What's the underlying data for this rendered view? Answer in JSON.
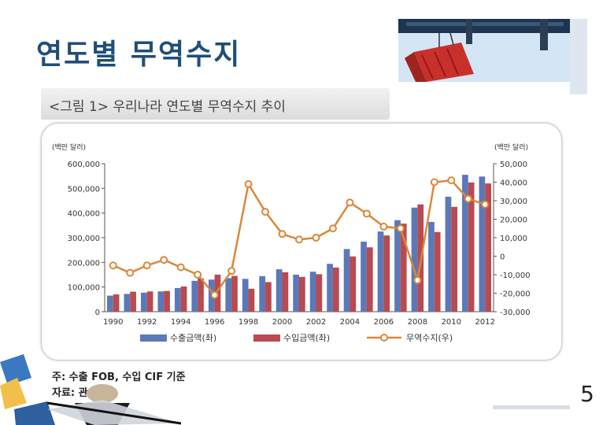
{
  "slide": {
    "title": "연도별 무역수지",
    "figure_heading": "<그림 1> 우리나라 연도별 무역수지 추이",
    "note": "주: 수출 FOB, 수입 CIF 기준",
    "source": "자료: 관세청",
    "page_number": "5"
  },
  "chart_data": {
    "type": "bar",
    "title": "",
    "left_axis_unit": "(백만 달러)",
    "right_axis_unit": "(백만 달러)",
    "x": [
      1990,
      1991,
      1992,
      1993,
      1994,
      1995,
      1996,
      1997,
      1998,
      1999,
      2000,
      2001,
      2002,
      2003,
      2004,
      2005,
      2006,
      2007,
      2008,
      2009,
      2010,
      2011,
      2012
    ],
    "x_tick_labels": [
      "1990",
      "1992",
      "1994",
      "1996",
      "1998",
      "2000",
      "2002",
      "2004",
      "2006",
      "2008",
      "2010",
      "2012"
    ],
    "y_left": {
      "ticks": [
        "600,000",
        "500,000",
        "400,000",
        "300,000",
        "200,000",
        "100,000",
        "0"
      ],
      "range": [
        0,
        600000
      ]
    },
    "y_right": {
      "ticks": [
        "50,000",
        "40,000",
        "30,000",
        "20,000",
        "10,000",
        "0",
        "-10,000",
        "-20,000",
        "-30,000"
      ],
      "range": [
        -30000,
        50000
      ]
    },
    "series": [
      {
        "name": "수출금액(좌)",
        "kind": "bar",
        "axis": "left",
        "color": "#5b79b8",
        "values": [
          65000,
          72000,
          77000,
          82000,
          96000,
          125000,
          130000,
          136000,
          133000,
          144000,
          172000,
          150000,
          162000,
          194000,
          254000,
          284000,
          325000,
          371000,
          422000,
          364000,
          466000,
          555000,
          548000
        ]
      },
      {
        "name": "수입금액(좌)",
        "kind": "bar",
        "axis": "left",
        "color": "#b94a4f",
        "values": [
          70000,
          81000,
          82000,
          84000,
          102000,
          135000,
          150000,
          145000,
          93000,
          120000,
          160000,
          141000,
          152000,
          179000,
          224000,
          261000,
          309000,
          357000,
          435000,
          323000,
          425000,
          524000,
          520000
        ]
      },
      {
        "name": "무역수지(우)",
        "kind": "line",
        "axis": "right",
        "color": "#d9883a",
        "values": [
          -5000,
          -9000,
          -5000,
          -2000,
          -6000,
          -10000,
          -21000,
          -8000,
          39000,
          24000,
          12000,
          9000,
          10000,
          15000,
          29000,
          23000,
          16000,
          15000,
          -13000,
          40000,
          41000,
          31000,
          28000
        ]
      }
    ],
    "legend_position": "bottom",
    "grid": false
  },
  "colors": {
    "title": "#1f4e79",
    "export_bar": "#5b79b8",
    "import_bar": "#b94a4f",
    "balance_line": "#d9883a"
  }
}
